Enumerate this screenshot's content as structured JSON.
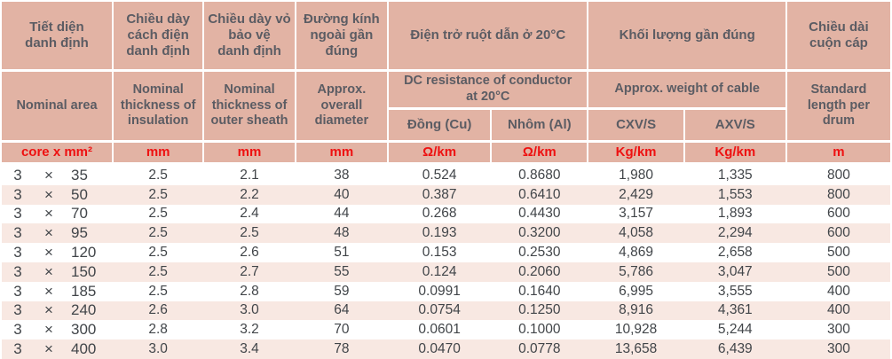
{
  "colors": {
    "header_background": "#e2b3a4",
    "row_stripe": "#f8e8e2",
    "unit_text": "#ee1111",
    "header_text": "#5b5c63",
    "data_text": "#414549"
  },
  "table": {
    "header_vn": {
      "nominal_area": "Tiết diện\ndanh định",
      "insulation": "Chiều dày\ncách điện\ndanh định",
      "sheath": "Chiều dày vỏ\nbảo vệ\ndanh định",
      "diameter": "Đường kính\nngoài gần\nđúng",
      "resistance_group": "Điện trở ruột dẫn ở 20°C",
      "weight_group": "Khối lượng gần đúng",
      "drum": "Chiều dài\ncuộn cáp"
    },
    "header_en": {
      "nominal_area": "Nominal area",
      "insulation": "Nominal\nthickness of\ninsulation",
      "sheath": "Nominal\nthickness of\nouter sheath",
      "diameter": "Approx.\noverall\ndiameter",
      "resistance_group": "DC resistance of conductor\nat 20°C",
      "weight_group": "Approx. weight of cable",
      "drum": "Standard\nlength per\ndrum"
    },
    "subheaders": {
      "copper": "Đồng (Cu)",
      "aluminum": "Nhôm (Al)",
      "cxvs": "CXV/S",
      "axvs": "AXV/S"
    },
    "units": {
      "area": "core x mm²",
      "insulation": "mm",
      "sheath": "mm",
      "diameter": "mm",
      "copper": "Ω/km",
      "aluminum": "Ω/km",
      "cxvs": "Kg/km",
      "axvs": "Kg/km",
      "drum": "m"
    },
    "rows": [
      {
        "cores": "3",
        "times": "×",
        "size": "35",
        "values": [
          "2.5",
          "2.1",
          "38",
          "0.524",
          "0.8680",
          "1,980",
          "1,335",
          "800"
        ]
      },
      {
        "cores": "3",
        "times": "×",
        "size": "50",
        "values": [
          "2.5",
          "2.2",
          "40",
          "0.387",
          "0.6410",
          "2,429",
          "1,553",
          "800"
        ]
      },
      {
        "cores": "3",
        "times": "×",
        "size": "70",
        "values": [
          "2.5",
          "2.4",
          "44",
          "0.268",
          "0.4430",
          "3,157",
          "1,893",
          "600"
        ]
      },
      {
        "cores": "3",
        "times": "×",
        "size": "95",
        "values": [
          "2.5",
          "2.5",
          "48",
          "0.193",
          "0.3200",
          "4,058",
          "2,294",
          "600"
        ]
      },
      {
        "cores": "3",
        "times": "×",
        "size": "120",
        "values": [
          "2.5",
          "2.6",
          "51",
          "0.153",
          "0.2530",
          "4,869",
          "2,658",
          "500"
        ]
      },
      {
        "cores": "3",
        "times": "×",
        "size": "150",
        "values": [
          "2.5",
          "2.7",
          "55",
          "0.124",
          "0.2060",
          "5,786",
          "3,047",
          "500"
        ]
      },
      {
        "cores": "3",
        "times": "×",
        "size": "185",
        "values": [
          "2.5",
          "2.8",
          "59",
          "0.0991",
          "0.1640",
          "6,995",
          "3,555",
          "400"
        ]
      },
      {
        "cores": "3",
        "times": "×",
        "size": "240",
        "values": [
          "2.6",
          "3.0",
          "64",
          "0.0754",
          "0.1250",
          "8,916",
          "4,361",
          "400"
        ]
      },
      {
        "cores": "3",
        "times": "×",
        "size": "300",
        "values": [
          "2.8",
          "3.2",
          "70",
          "0.0601",
          "0.1000",
          "10,928",
          "5,244",
          "300"
        ]
      },
      {
        "cores": "3",
        "times": "×",
        "size": "400",
        "values": [
          "3.0",
          "3.4",
          "78",
          "0.0470",
          "0.0778",
          "13,658",
          "6,439",
          "300"
        ]
      }
    ]
  }
}
